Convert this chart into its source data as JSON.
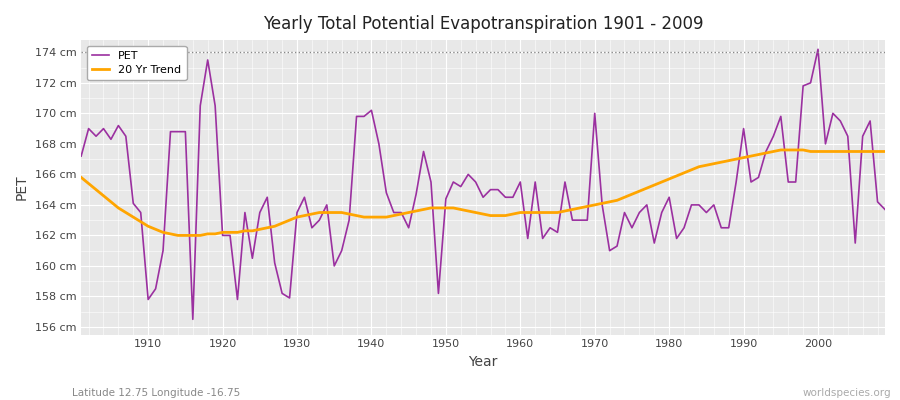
{
  "title": "Yearly Total Potential Evapotranspiration 1901 - 2009",
  "xlabel": "Year",
  "ylabel": "PET",
  "subtitle_left": "Latitude 12.75 Longitude -16.75",
  "subtitle_right": "worldspecies.org",
  "ylim": [
    155.5,
    174.8
  ],
  "yticks": [
    156,
    158,
    160,
    162,
    164,
    166,
    168,
    170,
    172,
    174
  ],
  "ytick_labels": [
    "156 cm",
    "158 cm",
    "160 cm",
    "162 cm",
    "164 cm",
    "166 cm",
    "168 cm",
    "170 cm",
    "172 cm",
    "174 cm"
  ],
  "hline_y": 174.0,
  "pet_color": "#9B30A0",
  "trend_color": "#FFA500",
  "fig_bg_color": "#FFFFFF",
  "plot_bg_color": "#E8E8E8",
  "grid_color": "#FFFFFF",
  "legend_labels": [
    "PET",
    "20 Yr Trend"
  ],
  "years": [
    1901,
    1902,
    1903,
    1904,
    1905,
    1906,
    1907,
    1908,
    1909,
    1910,
    1911,
    1912,
    1913,
    1914,
    1915,
    1916,
    1917,
    1918,
    1919,
    1920,
    1921,
    1922,
    1923,
    1924,
    1925,
    1926,
    1927,
    1928,
    1929,
    1930,
    1931,
    1932,
    1933,
    1934,
    1935,
    1936,
    1937,
    1938,
    1939,
    1940,
    1941,
    1942,
    1943,
    1944,
    1945,
    1946,
    1947,
    1948,
    1949,
    1950,
    1951,
    1952,
    1953,
    1954,
    1955,
    1956,
    1957,
    1958,
    1959,
    1960,
    1961,
    1962,
    1963,
    1964,
    1965,
    1966,
    1967,
    1968,
    1969,
    1970,
    1971,
    1972,
    1973,
    1974,
    1975,
    1976,
    1977,
    1978,
    1979,
    1980,
    1981,
    1982,
    1983,
    1984,
    1985,
    1986,
    1987,
    1988,
    1989,
    1990,
    1991,
    1992,
    1993,
    1994,
    1995,
    1996,
    1997,
    1998,
    1999,
    2000,
    2001,
    2002,
    2003,
    2004,
    2005,
    2006,
    2007,
    2008,
    2009
  ],
  "pet": [
    167.2,
    169.0,
    168.5,
    169.0,
    168.3,
    169.2,
    168.5,
    164.1,
    163.5,
    157.8,
    158.5,
    161.0,
    168.8,
    168.8,
    168.8,
    156.5,
    170.5,
    173.5,
    170.5,
    162.0,
    162.0,
    157.8,
    163.5,
    160.5,
    163.5,
    164.5,
    160.2,
    158.2,
    157.9,
    163.5,
    164.5,
    162.5,
    163.0,
    164.0,
    160.0,
    161.0,
    163.0,
    169.8,
    169.8,
    170.2,
    168.0,
    164.8,
    163.5,
    163.5,
    162.5,
    164.7,
    167.5,
    165.5,
    158.2,
    164.4,
    165.5,
    165.2,
    166.0,
    165.5,
    164.5,
    165.0,
    165.0,
    164.5,
    164.5,
    165.5,
    161.8,
    165.5,
    161.8,
    162.5,
    162.2,
    165.5,
    163.0,
    163.0,
    163.0,
    170.0,
    164.0,
    161.0,
    161.3,
    163.5,
    162.5,
    163.5,
    164.0,
    161.5,
    163.5,
    164.5,
    161.8,
    162.5,
    164.0,
    164.0,
    163.5,
    164.0,
    162.5,
    162.5,
    165.5,
    169.0,
    165.5,
    165.8,
    167.5,
    168.5,
    169.8,
    165.5,
    165.5,
    171.8,
    172.0,
    174.2,
    168.0,
    170.0,
    169.5,
    168.5,
    161.5,
    168.5,
    169.5,
    164.2,
    163.7
  ],
  "trend": [
    165.8,
    165.4,
    165.0,
    164.6,
    164.2,
    163.8,
    163.5,
    163.2,
    162.9,
    162.6,
    162.4,
    162.2,
    162.1,
    162.0,
    162.0,
    162.0,
    162.0,
    162.1,
    162.1,
    162.2,
    162.2,
    162.2,
    162.3,
    162.3,
    162.4,
    162.5,
    162.6,
    162.8,
    163.0,
    163.2,
    163.3,
    163.4,
    163.5,
    163.5,
    163.5,
    163.5,
    163.4,
    163.3,
    163.2,
    163.2,
    163.2,
    163.2,
    163.3,
    163.4,
    163.5,
    163.6,
    163.7,
    163.8,
    163.8,
    163.8,
    163.8,
    163.7,
    163.6,
    163.5,
    163.4,
    163.3,
    163.3,
    163.3,
    163.4,
    163.5,
    163.5,
    163.5,
    163.5,
    163.5,
    163.5,
    163.6,
    163.7,
    163.8,
    163.9,
    164.0,
    164.1,
    164.2,
    164.3,
    164.5,
    164.7,
    164.9,
    165.1,
    165.3,
    165.5,
    165.7,
    165.9,
    166.1,
    166.3,
    166.5,
    166.6,
    166.7,
    166.8,
    166.9,
    167.0,
    167.1,
    167.2,
    167.3,
    167.4,
    167.5,
    167.6,
    167.6,
    167.6,
    167.6,
    167.5,
    167.5,
    167.5,
    167.5,
    167.5,
    167.5,
    167.5,
    167.5,
    167.5,
    167.5,
    167.5
  ]
}
